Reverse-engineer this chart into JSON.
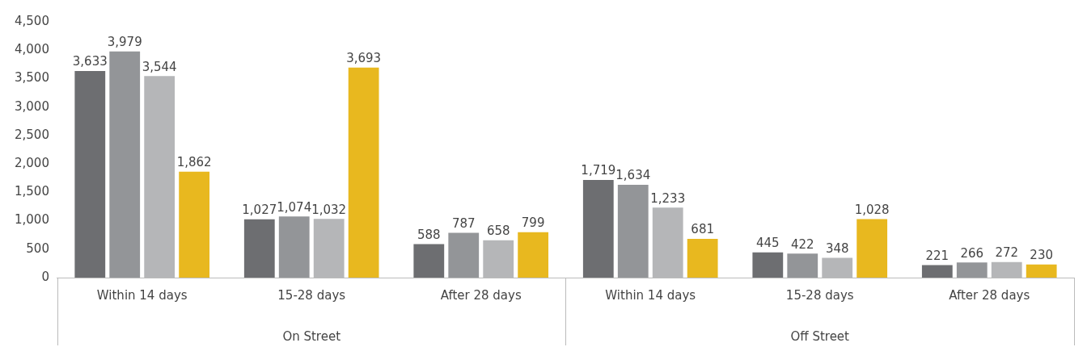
{
  "chart_data": {
    "type": "bar",
    "categories": [
      "Within 14 days",
      "15-28 days",
      "After 28 days",
      "Within 14 days",
      "15-28 days",
      "After 28 days"
    ],
    "annotations": [
      "On Street",
      "Off Street"
    ],
    "series": [
      {
        "color": "#6d6e71",
        "values": [
          3633,
          1027,
          588,
          1719,
          445,
          221
        ],
        "value_labels": [
          "3,633",
          "1,027",
          "588",
          "1,719",
          "445",
          "221"
        ]
      },
      {
        "color": "#939598",
        "values": [
          3979,
          1074,
          787,
          1634,
          422,
          266
        ],
        "value_labels": [
          "3,979",
          "1,074",
          "787",
          "1,634",
          "422",
          "266"
        ]
      },
      {
        "color": "#b5b6b8",
        "values": [
          3544,
          1032,
          658,
          1233,
          348,
          272
        ],
        "value_labels": [
          "3,544",
          "1,032",
          "658",
          "1,233",
          "348",
          "272"
        ]
      },
      {
        "color": "#e8b81f",
        "values": [
          1862,
          3693,
          799,
          681,
          1028,
          230
        ],
        "value_labels": [
          "1,862",
          "3,693",
          "799",
          "681",
          "1,028",
          "230"
        ]
      }
    ],
    "ylim": [
      0,
      4500
    ],
    "yticks": [
      0,
      {
        "value": 500,
        "label": "500"
      },
      {
        "value": 1000,
        "label": "1,000"
      },
      {
        "value": 1500,
        "label": "1,500"
      },
      {
        "value": 2000,
        "label": "2,000"
      },
      {
        "value": 2500,
        "label": "2,500"
      },
      {
        "value": 3000,
        "label": "3,000"
      },
      {
        "value": 3500,
        "label": "3,500"
      },
      {
        "value": 4000,
        "label": "4,000"
      },
      {
        "value": 4500,
        "label": "4,500"
      }
    ],
    "grid": false,
    "legend": false
  }
}
